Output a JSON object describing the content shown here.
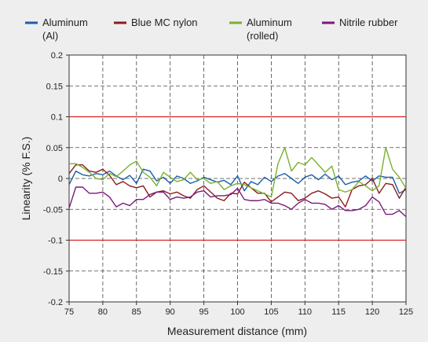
{
  "chart_data": {
    "type": "line",
    "title": "",
    "xlabel": "Measurement distance (mm)",
    "ylabel": "Linearity (% F.S.)",
    "xlim": [
      75,
      125
    ],
    "ylim": [
      -0.2,
      0.2
    ],
    "x_ticks": [
      75,
      80,
      85,
      90,
      95,
      100,
      105,
      110,
      115,
      120,
      125
    ],
    "y_ticks": [
      -0.2,
      -0.15,
      -0.1,
      -0.05,
      0,
      0.05,
      0.1,
      0.15,
      0.2
    ],
    "x_tick_labels": [
      "75",
      "80",
      "85",
      "90",
      "95",
      "100",
      "105",
      "110",
      "115",
      "120",
      "125"
    ],
    "y_tick_labels": [
      "-0.2",
      "-0.15",
      "-0.1",
      "-0.05",
      "0",
      "0.05",
      "0.1",
      "0.15",
      "0.2"
    ],
    "grid": true,
    "legend_position": "top",
    "reference_lines": [
      {
        "y": 0.1,
        "color": "#d62020"
      },
      {
        "y": -0.1,
        "color": "#d62020"
      }
    ],
    "x": [
      75,
      76,
      77,
      78,
      79,
      80,
      81,
      82,
      83,
      84,
      85,
      86,
      87,
      88,
      89,
      90,
      91,
      92,
      93,
      94,
      95,
      96,
      97,
      98,
      99,
      100,
      101,
      102,
      103,
      104,
      105,
      106,
      107,
      108,
      109,
      110,
      111,
      112,
      113,
      114,
      115,
      116,
      117,
      118,
      119,
      120,
      121,
      122,
      123,
      124,
      125
    ],
    "series": [
      {
        "name": "Aluminum (Al)",
        "legend_lines": [
          "Aluminum",
          "(Al)"
        ],
        "color": "#1a5fa8",
        "values": [
          -0.01,
          0.012,
          0.006,
          0.004,
          0.008,
          0.006,
          0.012,
          0.004,
          -0.002,
          0.005,
          -0.008,
          0.015,
          0.012,
          -0.004,
          0.002,
          -0.008,
          0.004,
          0.0,
          -0.008,
          -0.004,
          0.002,
          -0.002,
          -0.006,
          -0.003,
          -0.01,
          0.004,
          -0.02,
          -0.005,
          -0.01,
          0.002,
          -0.005,
          0.004,
          0.008,
          0.0,
          -0.008,
          0.002,
          0.006,
          -0.002,
          0.007,
          -0.002,
          0.004,
          -0.01,
          -0.006,
          -0.004,
          0.004,
          -0.004,
          0.004,
          0.002,
          0.002,
          -0.024,
          -0.018
        ]
      },
      {
        "name": "Blue MC nylon",
        "legend_lines": [
          "Blue MC nylon"
        ],
        "color": "#8b1c1c",
        "values": [
          0.008,
          0.022,
          0.022,
          0.012,
          0.01,
          0.015,
          0.005,
          -0.01,
          -0.005,
          -0.012,
          -0.015,
          -0.012,
          -0.03,
          -0.022,
          -0.02,
          -0.025,
          -0.022,
          -0.028,
          -0.032,
          -0.018,
          -0.012,
          -0.022,
          -0.032,
          -0.036,
          -0.024,
          -0.025,
          -0.006,
          -0.015,
          -0.024,
          -0.024,
          -0.038,
          -0.03,
          -0.022,
          -0.024,
          -0.036,
          -0.032,
          -0.024,
          -0.02,
          -0.025,
          -0.032,
          -0.03,
          -0.046,
          -0.018,
          -0.012,
          -0.01,
          0.0,
          -0.024,
          -0.008,
          -0.01,
          -0.032,
          -0.014
        ]
      },
      {
        "name": "Aluminum (rolled)",
        "legend_lines": [
          "Aluminum",
          "(rolled)"
        ],
        "color": "#7ab030",
        "values": [
          0.024,
          0.024,
          0.018,
          0.01,
          0.0,
          -0.002,
          0.008,
          0.003,
          0.012,
          0.022,
          0.028,
          0.01,
          0.002,
          -0.012,
          0.01,
          0.002,
          -0.005,
          -0.002,
          0.01,
          -0.002,
          0.0,
          -0.008,
          -0.005,
          -0.018,
          -0.012,
          -0.008,
          -0.01,
          -0.015,
          -0.02,
          -0.025,
          -0.03,
          0.024,
          0.05,
          0.012,
          0.026,
          0.022,
          0.034,
          0.022,
          0.01,
          0.02,
          -0.018,
          -0.022,
          -0.018,
          -0.005,
          -0.012,
          -0.02,
          -0.012,
          0.05,
          0.015,
          0.002,
          -0.016
        ]
      },
      {
        "name": "Nitrile rubber",
        "legend_lines": [
          "Nitrile rubber"
        ],
        "color": "#7a1a7a",
        "values": [
          -0.048,
          -0.014,
          -0.014,
          -0.024,
          -0.024,
          -0.022,
          -0.03,
          -0.046,
          -0.04,
          -0.044,
          -0.034,
          -0.034,
          -0.026,
          -0.022,
          -0.022,
          -0.034,
          -0.03,
          -0.032,
          -0.03,
          -0.022,
          -0.02,
          -0.03,
          -0.028,
          -0.028,
          -0.026,
          -0.016,
          -0.034,
          -0.036,
          -0.036,
          -0.034,
          -0.04,
          -0.04,
          -0.044,
          -0.05,
          -0.04,
          -0.034,
          -0.04,
          -0.04,
          -0.042,
          -0.05,
          -0.044,
          -0.052,
          -0.052,
          -0.05,
          -0.044,
          -0.03,
          -0.038,
          -0.058,
          -0.058,
          -0.052,
          -0.062
        ]
      }
    ]
  }
}
